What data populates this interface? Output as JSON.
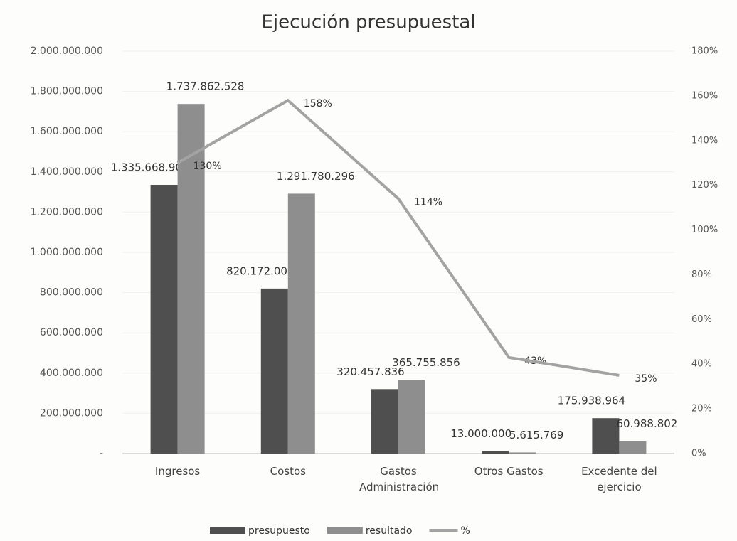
{
  "chart_data": {
    "type": "bar-line",
    "title": "Ejecución presupuestal",
    "categories": [
      "Ingresos",
      "Costos",
      "Gastos Administración",
      "Otros Gastos",
      "Excedente del ejercicio"
    ],
    "series": [
      {
        "name": "presupuesto",
        "color": "#4f4f4f",
        "values": [
          1335668900,
          820172000,
          320457836,
          13000000,
          175938964
        ],
        "value_labels": [
          "1.335.668.900",
          "820.172.000",
          "320.457.836",
          "13.000.000",
          "175.938.964"
        ]
      },
      {
        "name": "resultado",
        "color": "#8e8e8e",
        "values": [
          1737862528,
          1291780296,
          365755856,
          5615769,
          60988802
        ],
        "value_labels": [
          "1.737.862.528",
          "1.291.780.296",
          "365.755.856",
          "5.615.769",
          "60.988.802"
        ]
      },
      {
        "name": "%",
        "color": "#a3a3a3",
        "axis": "y2",
        "type": "line",
        "values": [
          130,
          158,
          114,
          43,
          35
        ],
        "value_labels": [
          "130%",
          "158%",
          "114%",
          "43%",
          "35%"
        ]
      }
    ],
    "ylim": [
      0,
      2000000000
    ],
    "yticks": [
      {
        "value": 0,
        "label": "-"
      },
      {
        "value": 200000000,
        "label": "200.000.000"
      },
      {
        "value": 400000000,
        "label": "400.000.000"
      },
      {
        "value": 600000000,
        "label": "600.000.000"
      },
      {
        "value": 800000000,
        "label": "800.000.000"
      },
      {
        "value": 1000000000,
        "label": "1.000.000.000"
      },
      {
        "value": 1200000000,
        "label": "1.200.000.000"
      },
      {
        "value": 1400000000,
        "label": "1.400.000.000"
      },
      {
        "value": 1600000000,
        "label": "1.600.000.000"
      },
      {
        "value": 1800000000,
        "label": "1.800.000.000"
      },
      {
        "value": 2000000000,
        "label": "2.000.000.000"
      }
    ],
    "y2lim": [
      0,
      180
    ],
    "y2ticks": [
      {
        "value": 0,
        "label": "0%"
      },
      {
        "value": 20,
        "label": "20%"
      },
      {
        "value": 40,
        "label": "40%"
      },
      {
        "value": 60,
        "label": "60%"
      },
      {
        "value": 80,
        "label": "80%"
      },
      {
        "value": 100,
        "label": "100%"
      },
      {
        "value": 120,
        "label": "120%"
      },
      {
        "value": 140,
        "label": "140%"
      },
      {
        "value": 160,
        "label": "160%"
      },
      {
        "value": 180,
        "label": "180%"
      }
    ],
    "legend": "bottom"
  }
}
